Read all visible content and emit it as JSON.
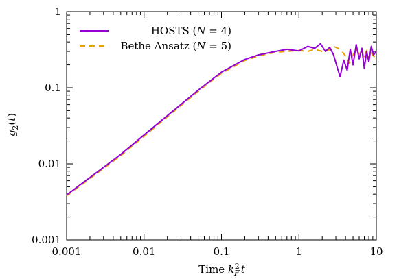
{
  "chart_data": {
    "type": "line",
    "xscale": "log",
    "yscale": "log",
    "xlim": [
      0.001,
      10
    ],
    "ylim": [
      0.001,
      1
    ],
    "xlabel": "Time k_F^2 t",
    "ylabel": "g_2(t)",
    "x_ticks": [
      {
        "value": 0.001,
        "label": "0.001"
      },
      {
        "value": 0.01,
        "label": "0.01"
      },
      {
        "value": 0.1,
        "label": "0.1"
      },
      {
        "value": 1,
        "label": "1"
      },
      {
        "value": 10,
        "label": "10"
      }
    ],
    "y_ticks": [
      {
        "value": 0.001,
        "label": "0.001"
      },
      {
        "value": 0.01,
        "label": "0.01"
      },
      {
        "value": 0.1,
        "label": "0.1"
      },
      {
        "value": 1,
        "label": "1"
      }
    ],
    "grid": false,
    "legend_position": "top-left",
    "series": [
      {
        "name": "HOSTS (N = 4)",
        "color": "#9400d3",
        "style": "solid",
        "x": [
          0.001,
          0.002,
          0.005,
          0.01,
          0.02,
          0.05,
          0.1,
          0.2,
          0.3,
          0.5,
          0.7,
          1.0,
          1.3,
          1.6,
          1.9,
          2.2,
          2.5,
          2.8,
          3.1,
          3.4,
          3.8,
          4.2,
          4.6,
          5.0,
          5.5,
          6.0,
          6.5,
          7.0,
          7.5,
          8.0,
          8.6,
          9.2,
          10
        ],
        "y": [
          0.0039,
          0.0066,
          0.0133,
          0.024,
          0.043,
          0.093,
          0.16,
          0.235,
          0.27,
          0.3,
          0.32,
          0.305,
          0.35,
          0.33,
          0.38,
          0.3,
          0.34,
          0.27,
          0.19,
          0.14,
          0.23,
          0.17,
          0.32,
          0.2,
          0.37,
          0.24,
          0.33,
          0.18,
          0.3,
          0.22,
          0.35,
          0.27,
          0.3
        ]
      },
      {
        "name": "Bethe Ansatz (N = 5)",
        "color": "#e6a000",
        "style": "dashed",
        "x": [
          0.001,
          0.002,
          0.005,
          0.01,
          0.02,
          0.05,
          0.1,
          0.2,
          0.3,
          0.5,
          0.7,
          1.0,
          1.3,
          1.6,
          2.0,
          2.4,
          2.8,
          3.2,
          3.6,
          4.0,
          4.5,
          5.0,
          5.5,
          6.0,
          6.5,
          7.0,
          7.5,
          8.0,
          8.6,
          9.2,
          10
        ],
        "y": [
          0.0038,
          0.0064,
          0.0128,
          0.023,
          0.0415,
          0.09,
          0.155,
          0.228,
          0.262,
          0.292,
          0.3,
          0.31,
          0.3,
          0.32,
          0.3,
          0.31,
          0.35,
          0.33,
          0.3,
          0.26,
          0.21,
          0.27,
          0.32,
          0.28,
          0.3,
          0.25,
          0.31,
          0.24,
          0.29,
          0.26,
          0.25
        ]
      }
    ]
  }
}
